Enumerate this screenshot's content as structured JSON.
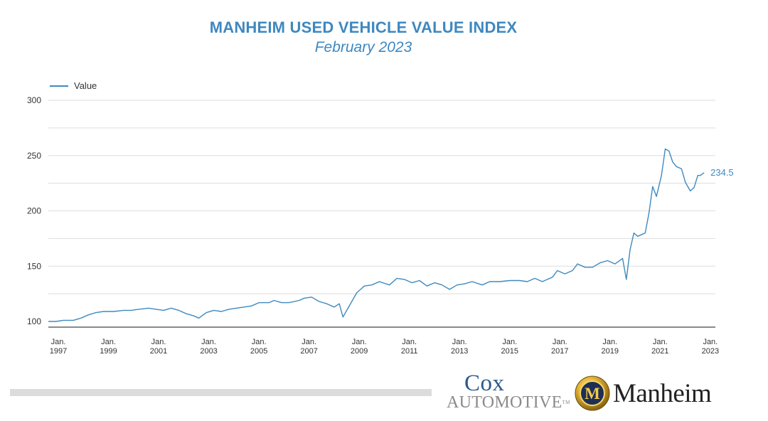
{
  "chart_data": {
    "type": "line",
    "title": "MANHEIM USED VEHICLE VALUE INDEX",
    "subtitle": "February 2023",
    "legend": "Value",
    "legend_position": "top-left",
    "xlabel": "",
    "ylabel": "",
    "ylim": [
      100,
      300
    ],
    "yticks": [
      100,
      150,
      200,
      250,
      300
    ],
    "grid": true,
    "xlim": [
      1997.0,
      2023.6
    ],
    "xticks": [
      {
        "value": 1997.0,
        "month": "Jan.",
        "year": "1997"
      },
      {
        "value": 1999.0,
        "month": "Jan.",
        "year": "1999"
      },
      {
        "value": 2001.0,
        "month": "Jan.",
        "year": "2001"
      },
      {
        "value": 2003.0,
        "month": "Jan.",
        "year": "2003"
      },
      {
        "value": 2005.0,
        "month": "Jan.",
        "year": "2005"
      },
      {
        "value": 2007.0,
        "month": "Jan.",
        "year": "2007"
      },
      {
        "value": 2009.0,
        "month": "Jan.",
        "year": "2009"
      },
      {
        "value": 2011.0,
        "month": "Jan.",
        "year": "2011"
      },
      {
        "value": 2013.0,
        "month": "Jan.",
        "year": "2013"
      },
      {
        "value": 2015.0,
        "month": "Jan.",
        "year": "2015"
      },
      {
        "value": 2017.0,
        "month": "Jan.",
        "year": "2017"
      },
      {
        "value": 2019.0,
        "month": "Jan.",
        "year": "2019"
      },
      {
        "value": 2021.0,
        "month": "Jan.",
        "year": "2021"
      },
      {
        "value": 2023.0,
        "month": "Jan.",
        "year": "2023"
      }
    ],
    "series": [
      {
        "name": "Value",
        "color": "#3e8abf",
        "x": [
          1997.0,
          1997.3,
          1997.6,
          1998.0,
          1998.3,
          1998.6,
          1998.9,
          1999.2,
          1999.6,
          2000.0,
          2000.3,
          2000.6,
          2001.0,
          2001.3,
          2001.6,
          2001.9,
          2002.2,
          2002.5,
          2002.8,
          2003.0,
          2003.3,
          2003.6,
          2003.9,
          2004.2,
          2004.5,
          2004.8,
          2005.1,
          2005.4,
          2005.8,
          2006.0,
          2006.3,
          2006.6,
          2007.0,
          2007.2,
          2007.5,
          2007.8,
          2008.1,
          2008.4,
          2008.6,
          2008.75,
          2008.9,
          2009.1,
          2009.3,
          2009.6,
          2009.9,
          2010.2,
          2010.6,
          2010.9,
          2011.2,
          2011.5,
          2011.8,
          2012.1,
          2012.4,
          2012.7,
          2013.0,
          2013.3,
          2013.6,
          2013.9,
          2014.3,
          2014.6,
          2015.0,
          2015.4,
          2015.8,
          2016.1,
          2016.4,
          2016.7,
          2016.9,
          2017.1,
          2017.3,
          2017.6,
          2017.9,
          2018.1,
          2018.4,
          2018.7,
          2019.0,
          2019.3,
          2019.6,
          2019.9,
          2020.05,
          2020.2,
          2020.35,
          2020.5,
          2020.8,
          2020.95,
          2021.1,
          2021.25,
          2021.45,
          2021.6,
          2021.75,
          2021.9,
          2022.05,
          2022.25,
          2022.4,
          2022.6,
          2022.75,
          2022.9,
          2023.0,
          2023.15
        ],
        "values": [
          100,
          100,
          101,
          101,
          103,
          106,
          108,
          109,
          109,
          110,
          110,
          111,
          112,
          111,
          110,
          112,
          110,
          107,
          105,
          103,
          108,
          110,
          109,
          111,
          112,
          113,
          114,
          117,
          117,
          119,
          117,
          117,
          119,
          121,
          122,
          118,
          116,
          113,
          116,
          104,
          110,
          118,
          126,
          132,
          133,
          136,
          133,
          139,
          138,
          135,
          137,
          132,
          135,
          133,
          129,
          133,
          134,
          136,
          133,
          136,
          136,
          137,
          137,
          136,
          139,
          136,
          138,
          140,
          146,
          143,
          146,
          152,
          149,
          149,
          153,
          155,
          152,
          157,
          138,
          165,
          180,
          177,
          180,
          198,
          222,
          213,
          232,
          256,
          254,
          244,
          240,
          238,
          226,
          218,
          221,
          232,
          232,
          234.5
        ]
      }
    ],
    "last_value_label": "234.5"
  },
  "branding": {
    "cox_line1": "Cox",
    "cox_line2": "AUTOMOTIVE",
    "cox_tm": "TM",
    "manheim_initial": "M",
    "manheim_word": "Manheim"
  }
}
